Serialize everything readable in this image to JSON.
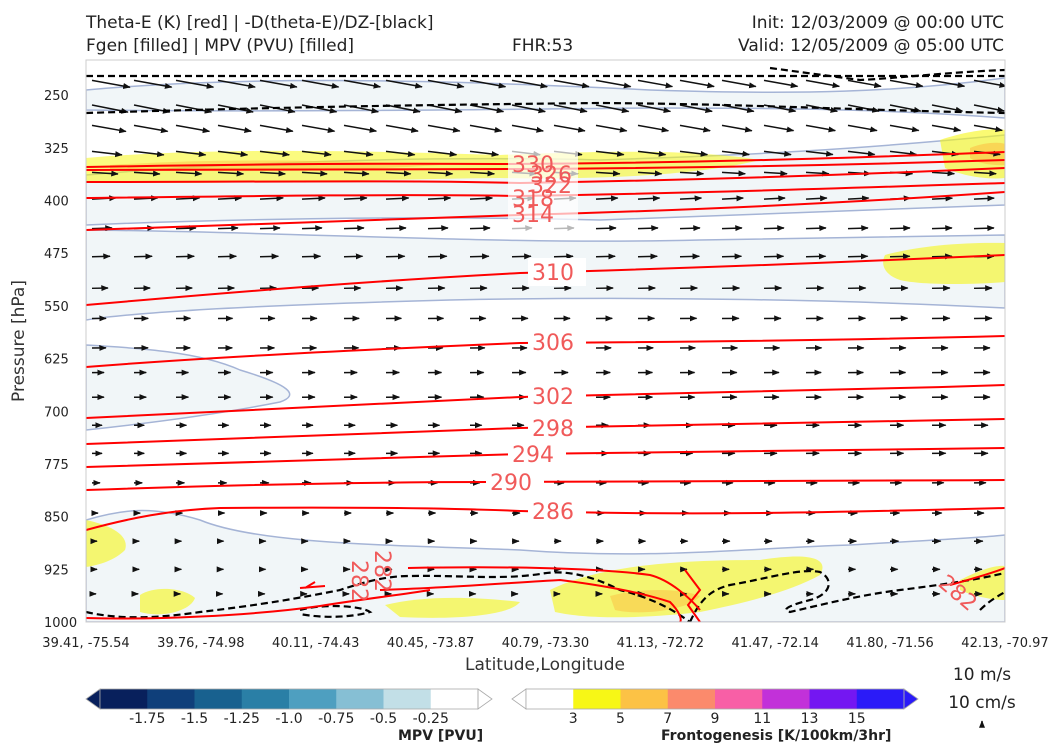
{
  "header": {
    "title_line1": "Theta-E (K) [red] | -D(theta-E)/DZ-[black]",
    "title_line2": "Fgen [filled] | MPV (PVU) [filled]",
    "fhr": "FHR:53",
    "init": "Init: 12/03/2009 @ 00:00 UTC",
    "valid": "Valid: 12/05/2009 @ 05:00 UTC"
  },
  "chart_data": {
    "type": "cross-section",
    "xlabel": "Latitude,Longitude",
    "ylabel": "Pressure [hPa]",
    "x_ticks": [
      "39.41, -75.54",
      "39.76, -74.98",
      "40.11, -74.43",
      "40.45, -73.87",
      "40.79, -73.30",
      "41.13, -72.72",
      "41.47, -72.14",
      "41.80, -71.56",
      "42.13, -70.97"
    ],
    "y_ticks": [
      250,
      325,
      400,
      475,
      550,
      625,
      700,
      775,
      850,
      925,
      1000
    ],
    "ylim": [
      1000,
      200
    ],
    "y_inverted": true,
    "theta_e_contours": [
      {
        "value": 330,
        "label": "330",
        "label_pressure": 345
      },
      {
        "value": 326,
        "label": "326",
        "label_pressure": 358
      },
      {
        "value": 322,
        "label": "322",
        "label_pressure": 375
      },
      {
        "value": 318,
        "label": "318",
        "label_pressure": 395
      },
      {
        "value": 314,
        "label": "314",
        "label_pressure": 415
      },
      {
        "value": 310,
        "label": "310",
        "label_pressure": 512
      },
      {
        "value": 306,
        "label": "306",
        "label_pressure": 623
      },
      {
        "value": 302,
        "label": "302",
        "label_pressure": 680
      },
      {
        "value": 298,
        "label": "298",
        "label_pressure": 710
      },
      {
        "value": 294,
        "label": "294",
        "label_pressure": 748
      },
      {
        "value": 290,
        "label": "290",
        "label_pressure": 775
      },
      {
        "value": 286,
        "label": "286",
        "label_pressure": 836
      },
      {
        "value": 282,
        "label": "282",
        "label_pressure": 945
      },
      {
        "value": 282,
        "label": "282",
        "label_pressure": 970
      }
    ],
    "mpv_colorbar": {
      "label": "MPV [PVU]",
      "ticks": [
        "-1.75",
        "-1.5",
        "-1.25",
        "-1.0",
        "-0.75",
        "-0.5",
        "-0.25"
      ],
      "colors": [
        "#08205c",
        "#0f3f7a",
        "#18618f",
        "#2a7fa6",
        "#4e9fc0",
        "#86bfd4",
        "#c2dfe7",
        "#ffffff"
      ]
    },
    "fgen_colorbar": {
      "label": "Frontogenesis [K/100km/3hr]",
      "ticks": [
        "3",
        "5",
        "7",
        "9",
        "11",
        "13",
        "15"
      ],
      "colors": [
        "#ffffff",
        "#f7f716",
        "#fcc245",
        "#fb8a6c",
        "#f85fa6",
        "#c231d9",
        "#7417f2",
        "#2b1bf8"
      ]
    },
    "wind_reference": {
      "horizontal": "10 m/s",
      "vertical": "10 cm/s"
    },
    "colors": {
      "theta_e": "#ff0000",
      "dthetae_dz": "#000000",
      "mpv_outline": "#a5b4d6",
      "mpv_fill": "#f1f6f8",
      "fgen_fill": "#f7f716"
    }
  }
}
